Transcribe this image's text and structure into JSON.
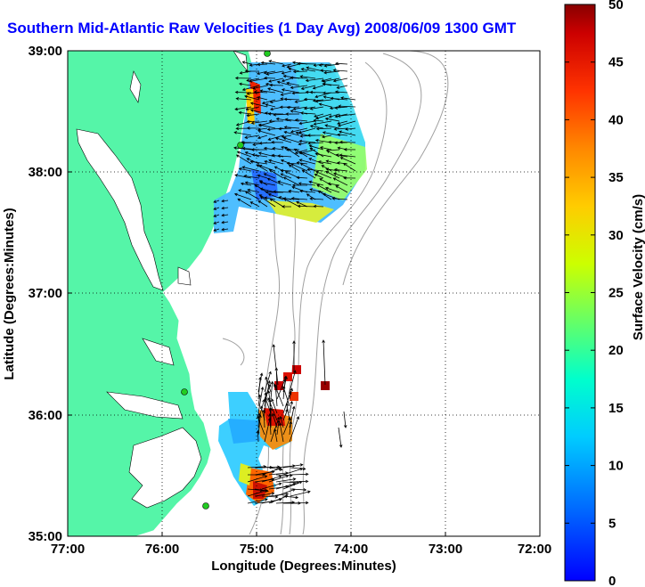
{
  "title": "Southern Mid-Atlantic Raw Velocities (1 Day Avg) 2008/06/09 1300 GMT",
  "axes": {
    "xlabel": "Longitude (Degrees:Minutes)",
    "ylabel": "Latitude (Degrees:Minutes)",
    "x_ticks": [
      "77:00",
      "76:00",
      "75:00",
      "74:00",
      "73:00",
      "72:00"
    ],
    "y_ticks": [
      "39:00",
      "38:00",
      "37:00",
      "36:00",
      "35:00"
    ],
    "x_range": [
      -77,
      -72
    ],
    "y_range": [
      35,
      39
    ],
    "grid": "dotted"
  },
  "colorbar": {
    "label": "Surface Velocity (cm/s)",
    "ticks": [
      "0",
      "5",
      "10",
      "15",
      "20",
      "25",
      "30",
      "35",
      "40",
      "45",
      "50"
    ],
    "range": [
      0,
      50
    ],
    "colormap": "jet"
  },
  "colors": {
    "land": "#55f5a8",
    "title": "#0000ff",
    "bathymetry": "#a0a0a0",
    "station": "#22cc22"
  },
  "chart_data": {
    "type": "heatmap",
    "stations": [
      {
        "lon": -75.12,
        "lat": 38.98
      },
      {
        "lon": -75.15,
        "lat": 38.22
      },
      {
        "lon": -75.52,
        "lat": 36.18
      },
      {
        "lon": -75.53,
        "lat": 35.28
      }
    ],
    "velocity_cells": [
      {
        "lon": -74.9,
        "lat": 38.7,
        "speed": 10
      },
      {
        "lon": -74.7,
        "lat": 38.6,
        "speed": 12
      },
      {
        "lon": -74.5,
        "lat": 38.5,
        "speed": 14
      },
      {
        "lon": -74.3,
        "lat": 38.4,
        "speed": 15
      },
      {
        "lon": -74.1,
        "lat": 38.2,
        "speed": 18
      },
      {
        "lon": -74.9,
        "lat": 38.3,
        "speed": 11
      },
      {
        "lon": -74.7,
        "lat": 38.1,
        "speed": 13
      },
      {
        "lon": -74.5,
        "lat": 37.9,
        "speed": 20
      },
      {
        "lon": -74.4,
        "lat": 37.7,
        "speed": 26
      },
      {
        "lon": -75.0,
        "lat": 38.85,
        "speed": 44
      },
      {
        "lon": -75.0,
        "lat": 37.95,
        "speed": 8
      },
      {
        "lon": -74.75,
        "lat": 36.3,
        "speed": 46
      },
      {
        "lon": -74.6,
        "lat": 36.4,
        "speed": 47
      },
      {
        "lon": -74.25,
        "lat": 36.25,
        "speed": 49
      },
      {
        "lon": -74.75,
        "lat": 35.9,
        "speed": 40
      },
      {
        "lon": -74.9,
        "lat": 35.85,
        "speed": 14
      },
      {
        "lon": -75.05,
        "lat": 35.8,
        "speed": 12
      },
      {
        "lon": -74.95,
        "lat": 35.45,
        "speed": 27
      },
      {
        "lon": -75.0,
        "lat": 35.35,
        "speed": 42
      }
    ]
  }
}
